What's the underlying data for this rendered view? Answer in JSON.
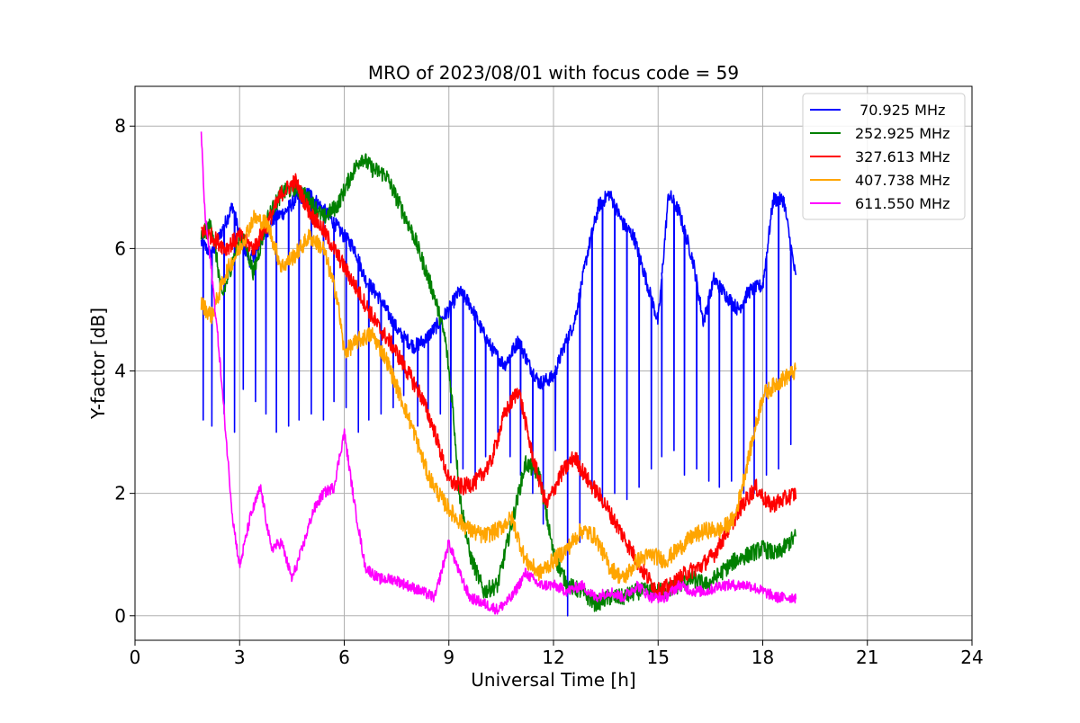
{
  "chart_data": {
    "type": "line",
    "title": "MRO of 2023/08/01 with focus code = 59",
    "xlabel": "Universal Time [h]",
    "ylabel": "Y-factor [dB]",
    "xlim": [
      0,
      24
    ],
    "ylim": [
      -0.4,
      8.65
    ],
    "xticks": [
      0,
      3,
      6,
      9,
      12,
      15,
      18,
      21,
      24
    ],
    "yticks": [
      0,
      2,
      4,
      6,
      8
    ],
    "grid": true,
    "legend_position": "top-right",
    "series": [
      {
        "name": " 70.925 MHz",
        "color": "#0000ff",
        "x": [
          1.9,
          2.2,
          2.5,
          2.8,
          3.0,
          3.3,
          3.6,
          4.0,
          4.3,
          4.6,
          5.0,
          5.3,
          5.6,
          6.0,
          6.3,
          6.6,
          7.0,
          7.3,
          7.6,
          8.0,
          8.3,
          8.6,
          9.0,
          9.3,
          9.6,
          10.0,
          10.3,
          10.6,
          11.0,
          11.3,
          11.6,
          12.0,
          12.3,
          12.6,
          13.0,
          13.3,
          13.6,
          14.0,
          14.3,
          14.6,
          15.0,
          15.3,
          15.6,
          16.0,
          16.3,
          16.6,
          17.0,
          17.3,
          17.6,
          18.0,
          18.3,
          18.6,
          18.95
        ],
        "y": [
          6.1,
          5.9,
          6.3,
          6.7,
          6.2,
          5.8,
          6.1,
          6.5,
          6.6,
          6.8,
          6.9,
          6.7,
          6.5,
          6.2,
          6.0,
          5.5,
          5.2,
          4.9,
          4.6,
          4.4,
          4.5,
          4.7,
          5.0,
          5.3,
          5.1,
          4.6,
          4.3,
          4.1,
          4.5,
          4.1,
          3.8,
          3.9,
          4.4,
          4.8,
          6.0,
          6.7,
          6.9,
          6.4,
          6.2,
          5.6,
          4.8,
          6.9,
          6.6,
          5.8,
          4.8,
          5.5,
          5.2,
          5.0,
          5.3,
          5.4,
          6.8,
          6.8,
          5.5
        ],
        "dips": [
          {
            "x": 1.95,
            "y": 3.2
          },
          {
            "x": 2.2,
            "y": 3.1
          },
          {
            "x": 2.55,
            "y": 3.3
          },
          {
            "x": 2.85,
            "y": 3.0
          },
          {
            "x": 3.1,
            "y": 3.7
          },
          {
            "x": 3.45,
            "y": 3.5
          },
          {
            "x": 3.75,
            "y": 3.3
          },
          {
            "x": 4.05,
            "y": 3.0
          },
          {
            "x": 4.4,
            "y": 3.1
          },
          {
            "x": 4.7,
            "y": 3.2
          },
          {
            "x": 5.05,
            "y": 3.3
          },
          {
            "x": 5.4,
            "y": 3.2
          },
          {
            "x": 5.7,
            "y": 3.5
          },
          {
            "x": 6.05,
            "y": 3.4
          },
          {
            "x": 6.4,
            "y": 3.0
          },
          {
            "x": 6.7,
            "y": 3.2
          },
          {
            "x": 7.05,
            "y": 3.3
          },
          {
            "x": 7.4,
            "y": 3.4
          },
          {
            "x": 7.7,
            "y": 3.6
          },
          {
            "x": 8.1,
            "y": 3.1
          },
          {
            "x": 8.4,
            "y": 3.2
          },
          {
            "x": 8.75,
            "y": 3.3
          },
          {
            "x": 9.05,
            "y": 2.5
          },
          {
            "x": 9.4,
            "y": 2.4
          },
          {
            "x": 9.75,
            "y": 2.2
          },
          {
            "x": 10.05,
            "y": 2.6
          },
          {
            "x": 10.4,
            "y": 3.0
          },
          {
            "x": 10.75,
            "y": 2.6
          },
          {
            "x": 11.05,
            "y": 2.3
          },
          {
            "x": 11.4,
            "y": 2.0
          },
          {
            "x": 11.7,
            "y": 1.5
          },
          {
            "x": 12.05,
            "y": 2.7
          },
          {
            "x": 12.4,
            "y": 0.0
          },
          {
            "x": 12.75,
            "y": 1.2
          },
          {
            "x": 13.1,
            "y": 2.0
          },
          {
            "x": 13.4,
            "y": 1.8
          },
          {
            "x": 13.75,
            "y": 2.0
          },
          {
            "x": 14.1,
            "y": 1.9
          },
          {
            "x": 14.45,
            "y": 2.1
          },
          {
            "x": 14.8,
            "y": 2.4
          },
          {
            "x": 15.1,
            "y": 2.6
          },
          {
            "x": 15.45,
            "y": 2.7
          },
          {
            "x": 15.75,
            "y": 2.3
          },
          {
            "x": 16.1,
            "y": 2.4
          },
          {
            "x": 16.45,
            "y": 2.2
          },
          {
            "x": 16.75,
            "y": 2.1
          },
          {
            "x": 17.1,
            "y": 2.2
          },
          {
            "x": 17.45,
            "y": 2.0
          },
          {
            "x": 17.75,
            "y": 2.0
          },
          {
            "x": 18.1,
            "y": 2.3
          },
          {
            "x": 18.45,
            "y": 2.4
          },
          {
            "x": 18.8,
            "y": 2.8
          }
        ],
        "noise": 0.12
      },
      {
        "name": "252.925 MHz",
        "color": "#008000",
        "x": [
          1.9,
          2.2,
          2.5,
          2.8,
          3.1,
          3.4,
          3.8,
          4.2,
          4.6,
          5.0,
          5.4,
          5.8,
          6.2,
          6.5,
          6.8,
          7.2,
          7.6,
          8.0,
          8.3,
          8.6,
          8.9,
          9.1,
          9.3,
          9.6,
          10.0,
          10.4,
          10.8,
          11.2,
          11.6,
          12.0,
          12.4,
          12.8,
          13.2,
          13.6,
          14.0,
          14.4,
          14.8,
          15.2,
          15.6,
          16.0,
          16.4,
          16.8,
          17.2,
          17.6,
          18.0,
          18.4,
          18.95
        ],
        "y": [
          6.2,
          6.4,
          5.2,
          5.8,
          6.2,
          5.6,
          6.5,
          6.9,
          7.0,
          6.8,
          6.5,
          6.7,
          7.2,
          7.5,
          7.3,
          7.2,
          6.7,
          6.2,
          5.7,
          5.2,
          4.5,
          3.5,
          2.0,
          1.0,
          0.4,
          0.5,
          1.5,
          2.5,
          2.3,
          1.0,
          0.5,
          0.4,
          0.2,
          0.3,
          0.3,
          0.4,
          0.4,
          0.4,
          0.5,
          0.6,
          0.5,
          0.7,
          0.9,
          1.0,
          1.1,
          1.0,
          1.3
        ],
        "noise": 0.14
      },
      {
        "name": "327.613 MHz",
        "color": "#ff0000",
        "x": [
          1.9,
          2.2,
          2.6,
          3.0,
          3.4,
          3.8,
          4.2,
          4.6,
          5.0,
          5.4,
          5.8,
          6.2,
          6.6,
          7.0,
          7.4,
          7.8,
          8.2,
          8.6,
          9.0,
          9.4,
          9.8,
          10.2,
          10.6,
          11.0,
          11.4,
          11.8,
          12.2,
          12.6,
          13.0,
          13.4,
          13.8,
          14.2,
          14.6,
          15.0,
          15.4,
          15.8,
          16.2,
          16.6,
          17.0,
          17.4,
          17.8,
          18.2,
          18.6,
          18.95
        ],
        "y": [
          6.3,
          6.2,
          6.0,
          6.2,
          6.0,
          6.4,
          6.9,
          7.1,
          6.6,
          6.3,
          5.9,
          5.5,
          5.1,
          4.7,
          4.4,
          4.0,
          3.6,
          3.0,
          2.2,
          2.1,
          2.2,
          2.5,
          3.3,
          3.7,
          2.6,
          1.8,
          2.3,
          2.6,
          2.2,
          1.9,
          1.5,
          1.1,
          0.7,
          0.4,
          0.5,
          0.7,
          0.8,
          1.0,
          1.4,
          1.8,
          2.1,
          1.8,
          1.9,
          2.0
        ],
        "noise": 0.14
      },
      {
        "name": "407.738 MHz",
        "color": "#ffa500",
        "x": [
          1.9,
          2.2,
          2.6,
          3.0,
          3.4,
          3.8,
          4.2,
          4.6,
          5.0,
          5.4,
          5.8,
          6.0,
          6.4,
          6.8,
          7.2,
          7.6,
          8.0,
          8.4,
          8.8,
          9.2,
          9.6,
          10.0,
          10.4,
          10.8,
          11.2,
          11.6,
          12.0,
          12.4,
          12.8,
          13.2,
          13.6,
          14.0,
          14.4,
          14.8,
          15.2,
          15.6,
          16.0,
          16.4,
          16.8,
          17.2,
          17.6,
          18.0,
          18.4,
          18.95
        ],
        "y": [
          5.1,
          4.9,
          5.6,
          6.0,
          6.5,
          6.4,
          5.7,
          5.9,
          6.2,
          6.0,
          5.2,
          4.3,
          4.5,
          4.6,
          4.2,
          3.6,
          3.0,
          2.3,
          1.9,
          1.6,
          1.4,
          1.3,
          1.4,
          1.6,
          0.9,
          0.7,
          0.9,
          1.1,
          1.4,
          1.3,
          0.8,
          0.6,
          0.9,
          1.0,
          0.9,
          1.1,
          1.3,
          1.4,
          1.4,
          1.6,
          2.6,
          3.6,
          3.8,
          4.0
        ],
        "noise": 0.14
      },
      {
        "name": "611.550 MHz",
        "color": "#ff00ff",
        "x": [
          1.9,
          2.0,
          2.2,
          2.4,
          2.6,
          2.8,
          3.0,
          3.3,
          3.6,
          3.9,
          4.2,
          4.5,
          4.8,
          5.1,
          5.4,
          5.7,
          6.0,
          6.3,
          6.6,
          7.0,
          7.4,
          7.8,
          8.2,
          8.6,
          9.0,
          9.3,
          9.6,
          10.0,
          10.4,
          10.8,
          11.2,
          11.6,
          12.0,
          12.4,
          12.8,
          13.2,
          13.6,
          14.0,
          14.4,
          14.8,
          15.2,
          15.6,
          16.0,
          16.4,
          16.8,
          17.2,
          17.6,
          18.0,
          18.4,
          18.95
        ],
        "y": [
          7.9,
          6.6,
          5.6,
          4.4,
          3.0,
          1.6,
          0.8,
          1.6,
          2.1,
          1.1,
          1.2,
          0.6,
          1.1,
          1.7,
          2.0,
          2.1,
          3.0,
          1.8,
          0.8,
          0.6,
          0.6,
          0.5,
          0.4,
          0.3,
          1.2,
          0.7,
          0.3,
          0.2,
          0.1,
          0.3,
          0.7,
          0.5,
          0.5,
          0.4,
          0.5,
          0.3,
          0.4,
          0.3,
          0.5,
          0.3,
          0.3,
          0.5,
          0.4,
          0.4,
          0.5,
          0.5,
          0.5,
          0.4,
          0.3,
          0.3
        ],
        "noise": 0.09
      }
    ]
  }
}
